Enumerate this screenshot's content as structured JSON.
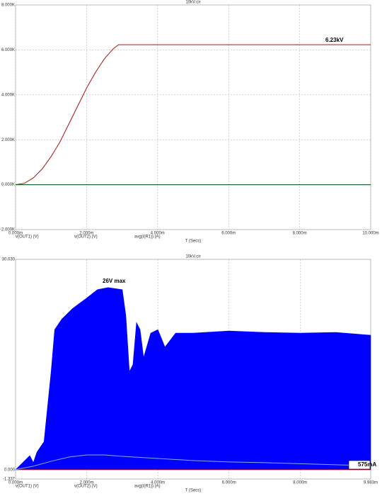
{
  "chart_data": [
    {
      "type": "line",
      "title": "10kV.cir",
      "x_label": "T (Secs)",
      "annotations": [
        "6.23kV"
      ],
      "grid": true,
      "xlim": [
        0,
        0.01
      ],
      "xticks": [
        {
          "value": 0,
          "label": "0.000m"
        },
        {
          "value": 0.002,
          "label": "2.000m"
        },
        {
          "value": 0.004,
          "label": "4.000m"
        },
        {
          "value": 0.006,
          "label": "6.000m"
        },
        {
          "value": 0.008,
          "label": "8.000m"
        },
        {
          "value": 0.01,
          "label": "10.000m"
        }
      ],
      "ylim": [
        -2000,
        8000
      ],
      "yticks": [
        {
          "value": -2000,
          "label": "-2.000K"
        },
        {
          "value": 0,
          "label": "0.000K"
        },
        {
          "value": 2000,
          "label": "2.000K"
        },
        {
          "value": 4000,
          "label": "4.000K"
        },
        {
          "value": 6000,
          "label": "6.000K"
        },
        {
          "value": 8000,
          "label": "8.000K"
        }
      ],
      "series": [
        {
          "name": "v(OUT1) (V)",
          "color": "#0000ff",
          "x": [
            0,
            0.01
          ],
          "values": [
            0,
            0
          ]
        },
        {
          "name": "v(OUT2) (V)",
          "color": "#b01010",
          "x": [
            0,
            0.00025,
            0.0005,
            0.00075,
            0.001,
            0.00125,
            0.0015,
            0.00175,
            0.002,
            0.00225,
            0.0025,
            0.00275,
            0.0029,
            0.01
          ],
          "values": [
            0,
            60,
            300,
            700,
            1250,
            1900,
            2700,
            3500,
            4300,
            5000,
            5600,
            6050,
            6230,
            6230
          ]
        },
        {
          "name": "avg(I(R1)) (A)",
          "color": "#1a6a1a",
          "x": [
            0,
            0.01
          ],
          "values": [
            0,
            0
          ]
        }
      ]
    },
    {
      "type": "line",
      "title": "10kV.cir",
      "x_label": "T (Secs)",
      "annotations": [
        "26V max",
        "575mA"
      ],
      "grid": true,
      "xlim": [
        0,
        0.009983
      ],
      "xticks": [
        {
          "value": 0,
          "label": "0.000m"
        },
        {
          "value": 0.002,
          "label": "2.000m"
        },
        {
          "value": 0.004,
          "label": "4.000m"
        },
        {
          "value": 0.006,
          "label": "6.000m"
        },
        {
          "value": 0.008,
          "label": "8.000m"
        },
        {
          "value": 0.009983,
          "label": "9.983m"
        }
      ],
      "ylim": [
        -1.337,
        30.03
      ],
      "yticks": [
        {
          "value": -1.337,
          "label": "-1.337"
        },
        {
          "value": 0,
          "label": "0.000"
        },
        {
          "value": 30.03,
          "label": "30.030"
        }
      ],
      "series": [
        {
          "name": "v(OUT1) (V)",
          "color": "#0000ff",
          "style": "area",
          "x": [
            0,
            0.0002,
            0.0004,
            0.0005,
            0.0006,
            0.0008,
            0.001,
            0.0011,
            0.0013,
            0.0016,
            0.002,
            0.0023,
            0.0026,
            0.003,
            0.0031,
            0.0032,
            0.0033,
            0.0034,
            0.0035,
            0.0036,
            0.0038,
            0.004,
            0.0042,
            0.0045,
            0.005,
            0.006,
            0.007,
            0.008,
            0.009,
            0.009983
          ],
          "values": [
            0,
            1,
            2,
            1,
            2.5,
            4,
            14,
            20,
            21.5,
            23,
            24.5,
            25.7,
            26,
            25.7,
            22,
            14,
            15,
            21,
            20,
            16,
            19.5,
            20,
            17.5,
            19.5,
            19.5,
            19.8,
            19.6,
            19.5,
            19.6,
            19.2
          ]
        },
        {
          "name": "v(OUT2) (V)",
          "color": "#b01010",
          "x": [
            0,
            0.009983
          ],
          "values": [
            0,
            0
          ]
        },
        {
          "name": "avg(I(R1)) (A)",
          "color": "#7fb0e8",
          "legend_color": "#1a6a1a",
          "x": [
            0,
            0.0005,
            0.001,
            0.0015,
            0.002,
            0.0025,
            0.003,
            0.004,
            0.005,
            0.006,
            0.007,
            0.008,
            0.009,
            0.009983
          ],
          "values": [
            0,
            0.5,
            1.2,
            1.8,
            2.1,
            2.1,
            1.9,
            1.6,
            1.3,
            1.1,
            1.0,
            0.85,
            0.7,
            0.575
          ]
        }
      ]
    }
  ]
}
